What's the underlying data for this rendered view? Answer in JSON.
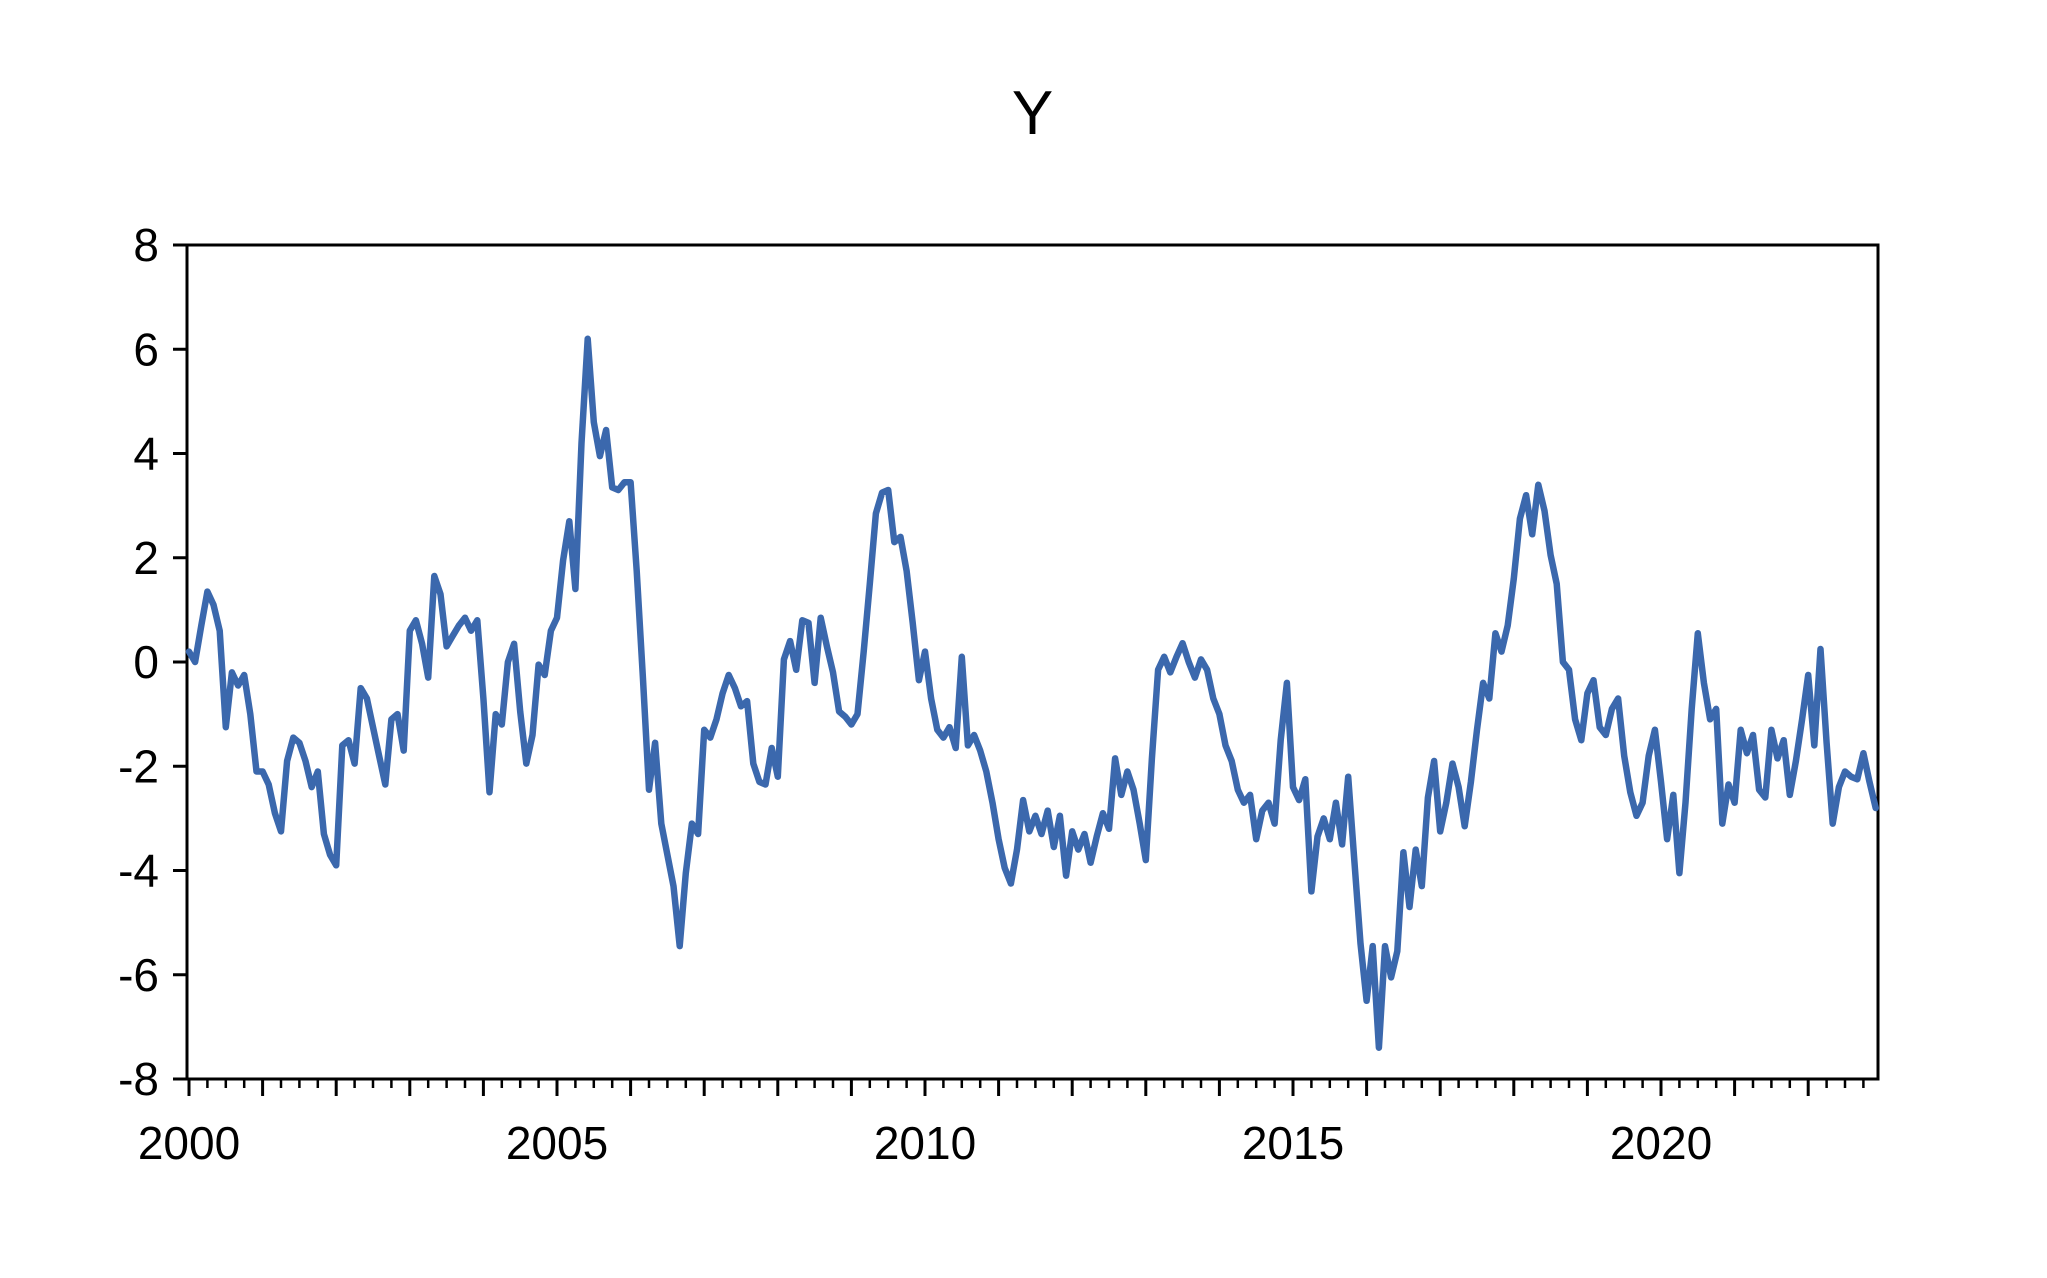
{
  "chart_data": {
    "type": "line",
    "title": "Y",
    "series_name": "Y",
    "xlabel": "",
    "ylabel": "",
    "grid": false,
    "legend_position": "none",
    "line_color": "#3b68ad",
    "axis_color": "#000000",
    "background_color": "#ffffff",
    "ylim": [
      -8,
      8
    ],
    "xlim": [
      2000,
      2023
    ],
    "y_tick_values": [
      8,
      6,
      4,
      2,
      0,
      -2,
      -4,
      -6,
      -8
    ],
    "y_tick_labels": [
      "8",
      "6",
      "4",
      "2",
      "0",
      "-2",
      "-4",
      "-6",
      "-8"
    ],
    "x_major_tick_years": [
      2000,
      2005,
      2010,
      2015,
      2020
    ],
    "x_tick_labels": [
      "2000",
      "2005",
      "2010",
      "2015",
      "2020"
    ],
    "x_minor_ticks": "quarterly",
    "x_year_ticks": "annual",
    "frequency": "monthly",
    "start_year": 2000,
    "start_month": 1,
    "values": [
      0.2,
      0.0,
      0.7,
      1.35,
      1.1,
      0.6,
      -1.25,
      -0.2,
      -0.45,
      -0.25,
      -1.0,
      -2.1,
      -2.1,
      -2.35,
      -2.9,
      -3.25,
      -1.9,
      -1.45,
      -1.55,
      -1.9,
      -2.4,
      -2.1,
      -3.3,
      -3.7,
      -3.9,
      -1.6,
      -1.5,
      -1.95,
      -0.5,
      -0.7,
      -1.25,
      -1.8,
      -2.35,
      -1.1,
      -1.0,
      -1.7,
      0.6,
      0.8,
      0.35,
      -0.3,
      1.65,
      1.3,
      0.3,
      0.5,
      0.7,
      0.85,
      0.6,
      0.8,
      -0.7,
      -2.5,
      -1.0,
      -1.2,
      0.0,
      0.35,
      -0.95,
      -1.95,
      -1.4,
      -0.05,
      -0.25,
      0.6,
      0.85,
      1.95,
      2.7,
      1.4,
      4.2,
      6.2,
      4.6,
      3.95,
      4.45,
      3.35,
      3.3,
      3.45,
      3.45,
      1.75,
      -0.3,
      -2.45,
      -1.55,
      -3.1,
      -3.7,
      -4.3,
      -5.45,
      -4.05,
      -3.1,
      -3.3,
      -1.3,
      -1.45,
      -1.1,
      -0.6,
      -0.25,
      -0.5,
      -0.85,
      -0.75,
      -1.95,
      -2.3,
      -2.35,
      -1.65,
      -2.2,
      0.05,
      0.4,
      -0.15,
      0.8,
      0.75,
      -0.4,
      0.85,
      0.3,
      -0.2,
      -0.95,
      -1.05,
      -1.2,
      -1.0,
      0.2,
      1.5,
      2.85,
      3.25,
      3.3,
      2.3,
      2.4,
      1.75,
      0.75,
      -0.35,
      0.2,
      -0.7,
      -1.3,
      -1.45,
      -1.25,
      -1.65,
      0.1,
      -1.6,
      -1.4,
      -1.7,
      -2.1,
      -2.7,
      -3.4,
      -3.95,
      -4.25,
      -3.6,
      -2.65,
      -3.25,
      -2.95,
      -3.3,
      -2.85,
      -3.55,
      -2.95,
      -4.1,
      -3.25,
      -3.6,
      -3.3,
      -3.85,
      -3.35,
      -2.9,
      -3.2,
      -1.85,
      -2.55,
      -2.1,
      -2.45,
      -3.1,
      -3.8,
      -1.85,
      -0.15,
      0.1,
      -0.2,
      0.1,
      0.36,
      0.0,
      -0.3,
      0.05,
      -0.15,
      -0.7,
      -1.0,
      -1.6,
      -1.9,
      -2.45,
      -2.7,
      -2.55,
      -3.4,
      -2.85,
      -2.7,
      -3.1,
      -1.5,
      -0.4,
      -2.4,
      -2.65,
      -2.25,
      -4.4,
      -3.35,
      -3.0,
      -3.4,
      -2.7,
      -3.5,
      -2.2,
      -3.8,
      -5.4,
      -6.5,
      -5.45,
      -7.4,
      -5.45,
      -6.05,
      -5.55,
      -3.65,
      -4.7,
      -3.6,
      -4.3,
      -2.6,
      -1.9,
      -3.25,
      -2.7,
      -1.95,
      -2.4,
      -3.15,
      -2.3,
      -1.3,
      -0.4,
      -0.7,
      0.55,
      0.2,
      0.7,
      1.6,
      2.75,
      3.2,
      2.45,
      3.4,
      2.9,
      2.05,
      1.5,
      0.0,
      -0.15,
      -1.1,
      -1.5,
      -0.6,
      -0.35,
      -1.25,
      -1.4,
      -0.9,
      -0.7,
      -1.8,
      -2.5,
      -2.95,
      -2.7,
      -1.8,
      -1.3,
      -2.3,
      -3.4,
      -2.55,
      -4.05,
      -2.7,
      -0.9,
      0.55,
      -0.4,
      -1.1,
      -0.9,
      -3.1,
      -2.35,
      -2.7,
      -1.3,
      -1.75,
      -1.4,
      -2.45,
      -2.6,
      -1.3,
      -1.85,
      -1.5,
      -2.55,
      -1.9,
      -1.1,
      -0.25,
      -1.6,
      0.25,
      -1.55,
      -3.1,
      -2.4,
      -2.1,
      -2.2,
      -2.25,
      -1.75,
      -2.3,
      -2.8
    ]
  }
}
